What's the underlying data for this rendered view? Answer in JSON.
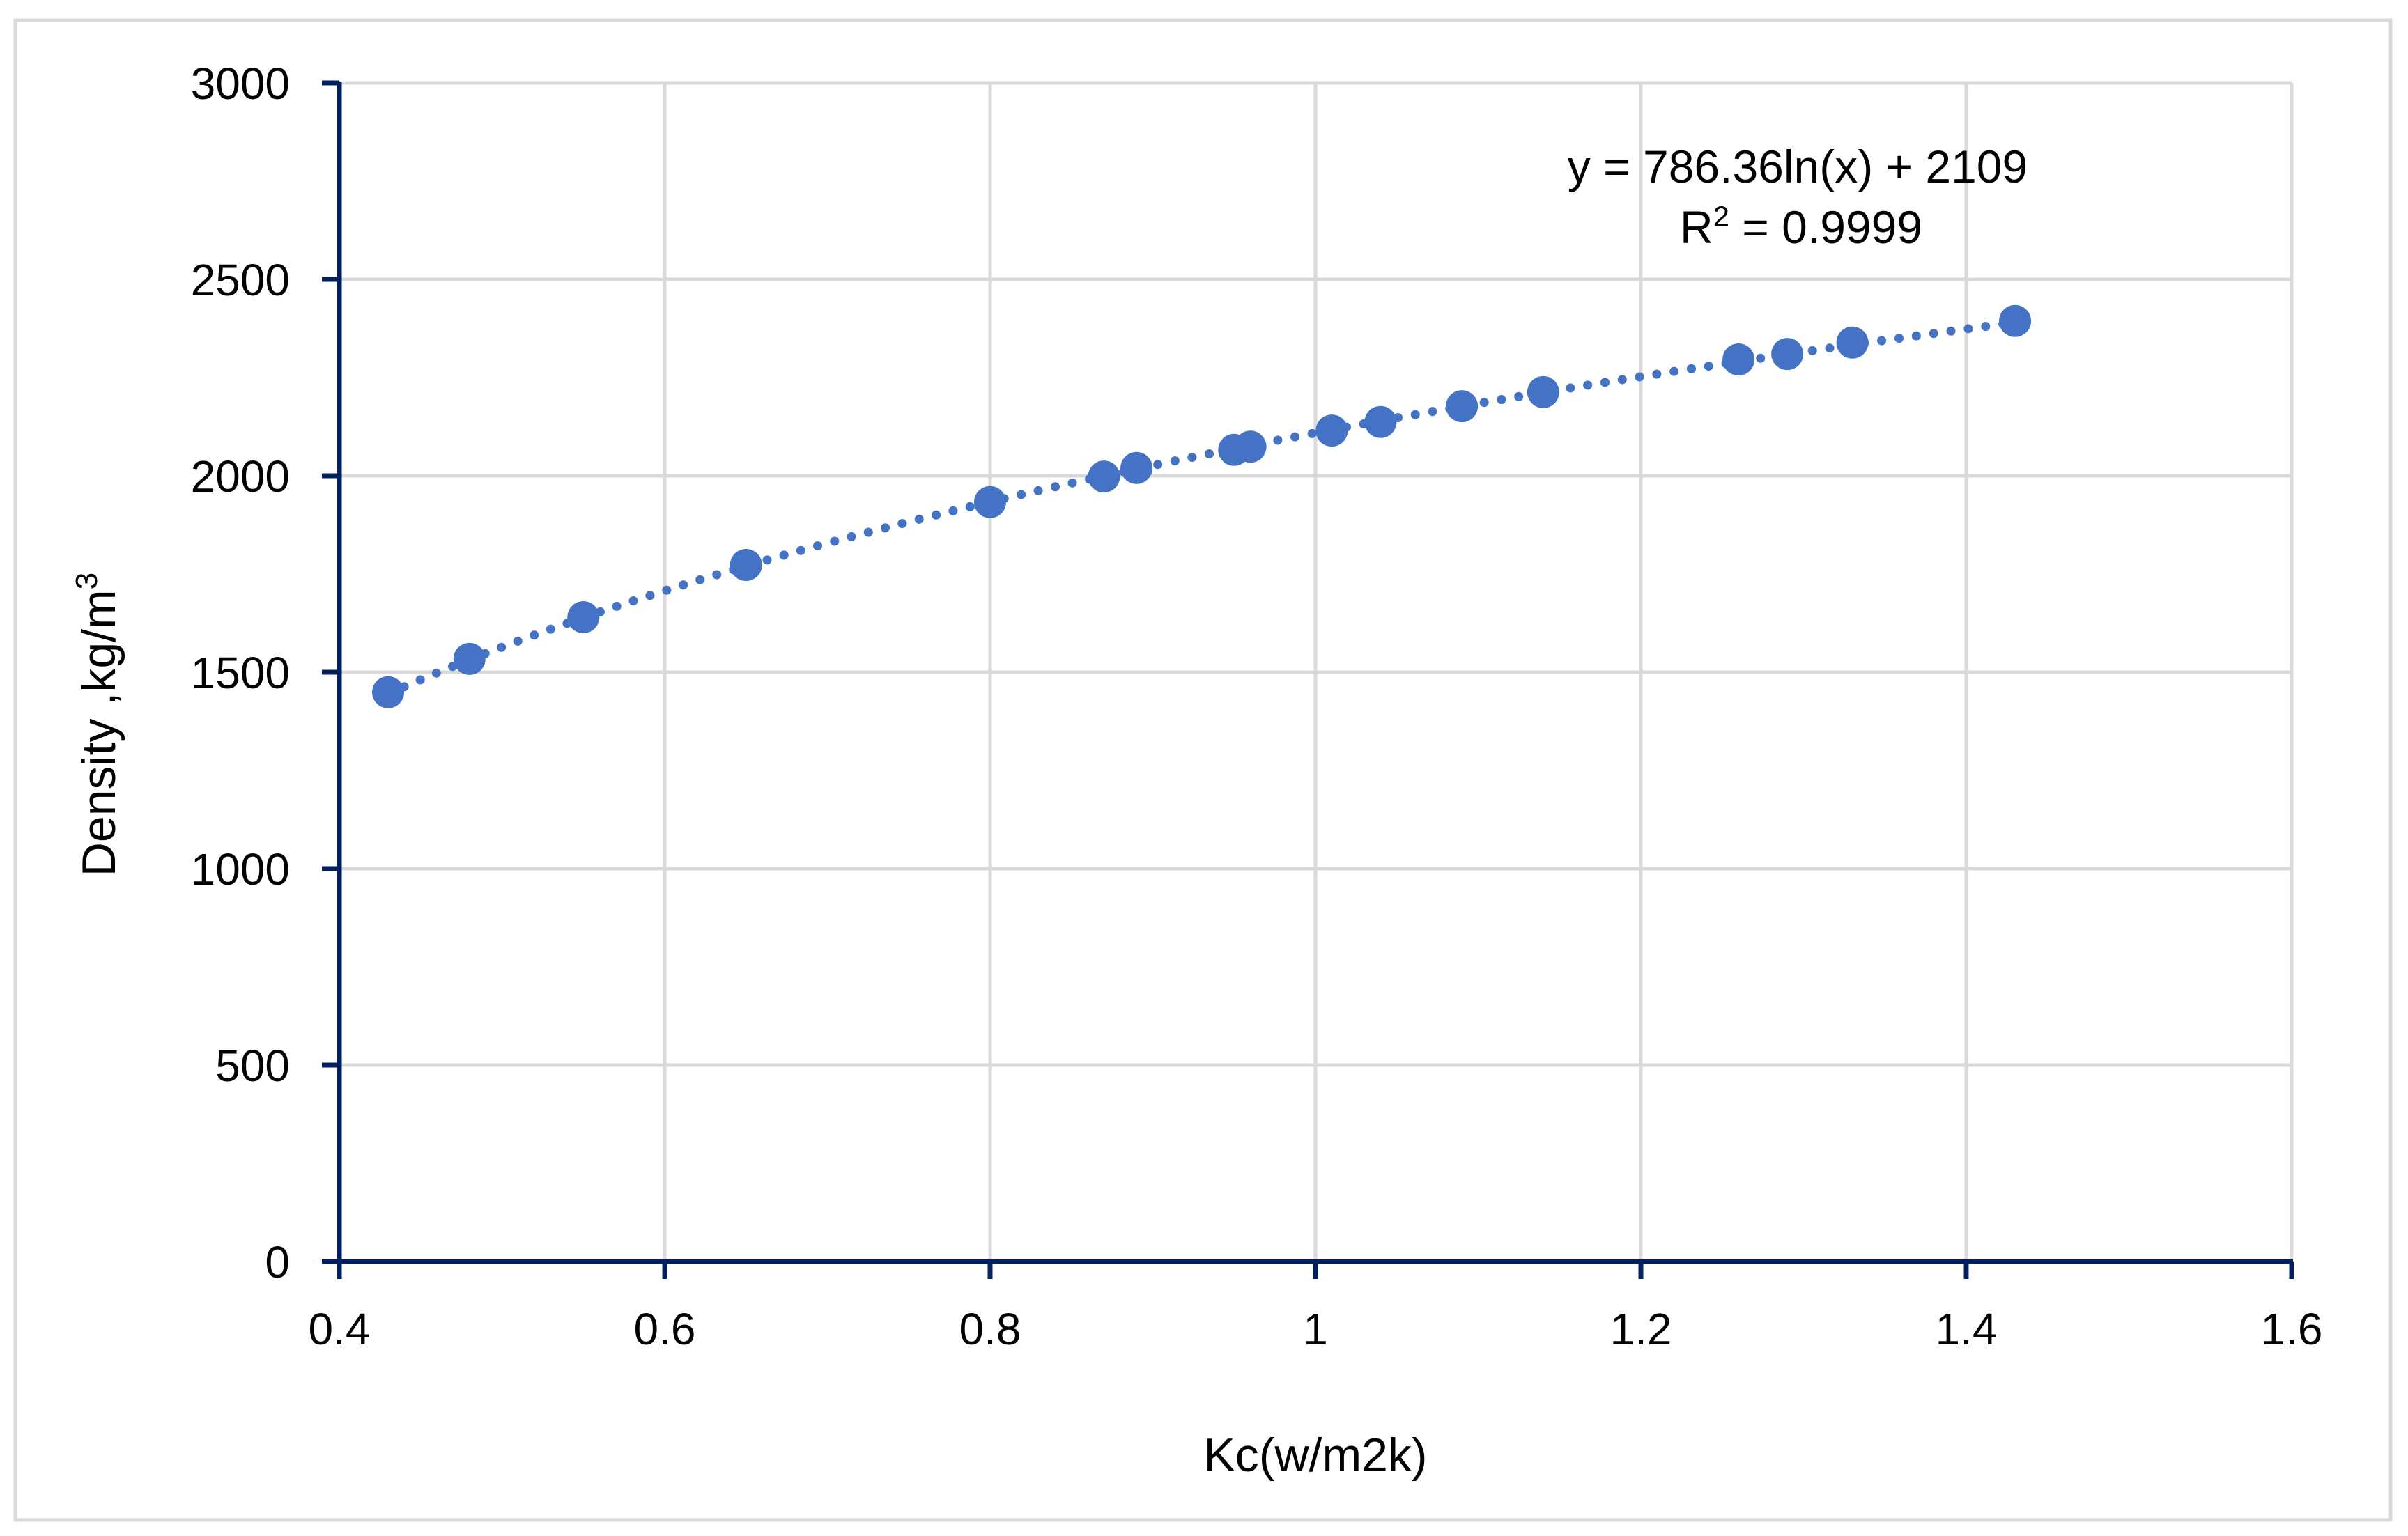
{
  "chart_data": {
    "type": "scatter",
    "title": "",
    "xlabel": "Kc(w/m2k)",
    "ylabel": "Density ,kg/m",
    "ylabel_superscript": "3",
    "xlim": [
      0.4,
      1.6
    ],
    "ylim": [
      0,
      3000
    ],
    "x_ticks": [
      0.4,
      0.6,
      0.8,
      1.0,
      1.2,
      1.4,
      1.6
    ],
    "x_tick_labels": [
      "0.4",
      "0.6",
      "0.8",
      "1",
      "1.2",
      "1.4",
      "1.6"
    ],
    "y_ticks": [
      0,
      500,
      1000,
      1500,
      2000,
      2500,
      3000
    ],
    "y_tick_labels": [
      "0",
      "500",
      "1000",
      "1500",
      "2000",
      "2500",
      "3000"
    ],
    "grid": true,
    "legend": null,
    "series": [
      {
        "name": "Density",
        "marker": "circle",
        "color": "#4472c4",
        "x": [
          0.43,
          0.48,
          0.55,
          0.65,
          0.8,
          0.87,
          0.89,
          0.95,
          0.96,
          1.01,
          1.04,
          1.09,
          1.14,
          1.26,
          1.29,
          1.33,
          1.43
        ],
        "y": [
          1449,
          1534,
          1640,
          1773,
          1933,
          1998,
          2020,
          2066,
          2074,
          2115,
          2137,
          2177,
          2213,
          2296,
          2310,
          2339,
          2394
        ]
      }
    ],
    "trendline": {
      "type": "logarithmic",
      "a": 786.36,
      "b": 2109,
      "style": "dotted",
      "color": "#4472c4",
      "equation_label": "y = 786.36ln(x) + 2109",
      "r2_prefix": "R",
      "r2_sup": "2",
      "r2_suffix": " = 0.9999"
    }
  },
  "colors": {
    "axis": "#002060",
    "grid": "#d9d9d9",
    "border": "#d9d9d9",
    "marker": "#4472c4",
    "text": "#000000"
  }
}
